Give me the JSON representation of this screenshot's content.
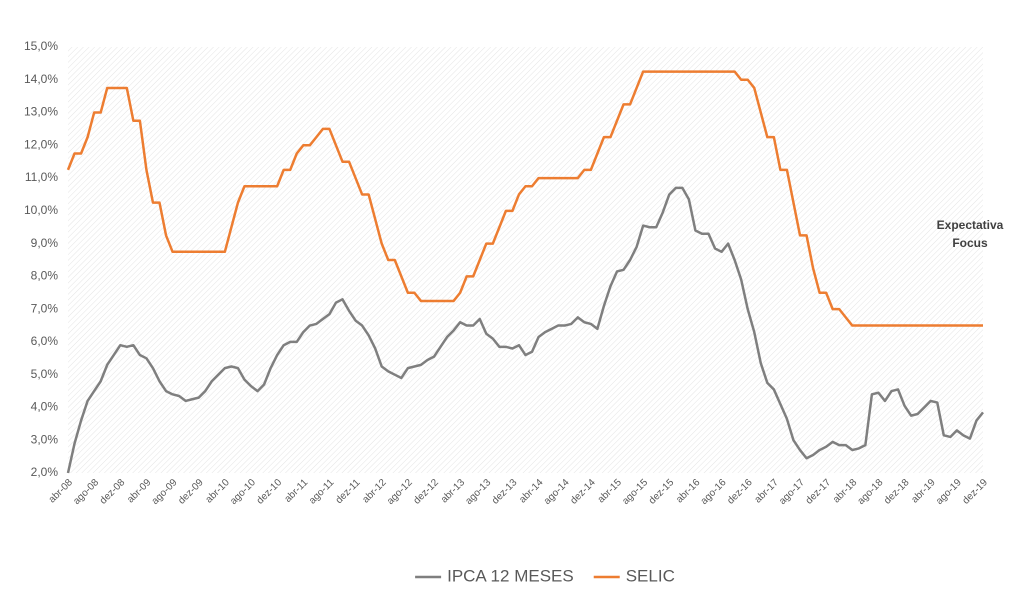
{
  "chart_data": {
    "type": "line",
    "categories": [
      "abr-08",
      null,
      null,
      null,
      "ago-08",
      null,
      null,
      null,
      "dez-08",
      null,
      null,
      null,
      "abr-09",
      null,
      null,
      null,
      "ago-09",
      null,
      null,
      null,
      "dez-09",
      null,
      null,
      null,
      "abr-10",
      null,
      null,
      null,
      "ago-10",
      null,
      null,
      null,
      "dez-10",
      null,
      null,
      null,
      "abr-11",
      null,
      null,
      null,
      "ago-11",
      null,
      null,
      null,
      "dez-11",
      null,
      null,
      null,
      "abr-12",
      null,
      null,
      null,
      "ago-12",
      null,
      null,
      null,
      "dez-12",
      null,
      null,
      null,
      "abr-13",
      null,
      null,
      null,
      "ago-13",
      null,
      null,
      null,
      "dez-13",
      null,
      null,
      null,
      "abr-14",
      null,
      null,
      null,
      "ago-14",
      null,
      null,
      null,
      "dez-14",
      null,
      null,
      null,
      "abr-15",
      null,
      null,
      null,
      "ago-15",
      null,
      null,
      null,
      "dez-15",
      null,
      null,
      null,
      "abr-16",
      null,
      null,
      null,
      "ago-16",
      null,
      null,
      null,
      "dez-16",
      null,
      null,
      null,
      "abr-17",
      null,
      null,
      null,
      "ago-17",
      null,
      null,
      null,
      "dez-17",
      null,
      null,
      null,
      "abr-18",
      null,
      null,
      null,
      "ago-18",
      null,
      null,
      null,
      "dez-18",
      null,
      null,
      null,
      "abr-19",
      null,
      null,
      null,
      "ago-19",
      null,
      null,
      null,
      "dez-19"
    ],
    "series": [
      {
        "name": "IPCA 12 MESES",
        "color": "#7f7f7f",
        "values": [
          2.0,
          2.9,
          3.6,
          4.2,
          4.5,
          4.8,
          5.3,
          5.6,
          5.9,
          5.85,
          5.9,
          5.6,
          5.5,
          5.2,
          4.8,
          4.5,
          4.4,
          4.35,
          4.2,
          4.25,
          4.3,
          4.5,
          4.8,
          5.0,
          5.2,
          5.25,
          5.2,
          4.85,
          4.65,
          4.5,
          4.7,
          5.2,
          5.6,
          5.9,
          6.0,
          6.0,
          6.3,
          6.5,
          6.55,
          6.7,
          6.85,
          7.2,
          7.3,
          6.95,
          6.65,
          6.5,
          6.2,
          5.8,
          5.25,
          5.1,
          5.0,
          4.9,
          5.2,
          5.25,
          5.3,
          5.45,
          5.55,
          5.85,
          6.15,
          6.35,
          6.6,
          6.5,
          6.5,
          6.7,
          6.25,
          6.1,
          5.85,
          5.85,
          5.8,
          5.9,
          5.6,
          5.7,
          6.15,
          6.3,
          6.4,
          6.5,
          6.5,
          6.55,
          6.75,
          6.6,
          6.55,
          6.4,
          7.1,
          7.7,
          8.15,
          8.2,
          8.5,
          8.9,
          9.55,
          9.5,
          9.5,
          9.95,
          10.5,
          10.7,
          10.7,
          10.35,
          9.4,
          9.3,
          9.3,
          8.85,
          8.75,
          9.0,
          8.5,
          7.9,
          7.0,
          6.3,
          5.35,
          4.75,
          4.55,
          4.1,
          3.65,
          3.0,
          2.7,
          2.45,
          2.55,
          2.7,
          2.8,
          2.95,
          2.85,
          2.85,
          2.7,
          2.75,
          2.85,
          4.4,
          4.45,
          4.2,
          4.5,
          4.55,
          4.05,
          3.75,
          3.8,
          4.0,
          4.2,
          4.15,
          3.15,
          3.1,
          3.3,
          3.15,
          3.05,
          3.6,
          3.85
        ]
      },
      {
        "name": "SELIC",
        "color": "#ed7d31",
        "values": [
          11.25,
          11.75,
          11.75,
          12.25,
          13.0,
          13.0,
          13.75,
          13.75,
          13.75,
          13.75,
          12.75,
          12.75,
          11.25,
          10.25,
          10.25,
          9.25,
          8.75,
          8.75,
          8.75,
          8.75,
          8.75,
          8.75,
          8.75,
          8.75,
          8.75,
          9.5,
          10.25,
          10.75,
          10.75,
          10.75,
          10.75,
          10.75,
          10.75,
          11.25,
          11.25,
          11.75,
          12.0,
          12.0,
          12.25,
          12.5,
          12.5,
          12.0,
          11.5,
          11.5,
          11.0,
          10.5,
          10.5,
          9.75,
          9.0,
          8.5,
          8.5,
          8.0,
          7.5,
          7.5,
          7.25,
          7.25,
          7.25,
          7.25,
          7.25,
          7.25,
          7.5,
          8.0,
          8.0,
          8.5,
          9.0,
          9.0,
          9.5,
          10.0,
          10.0,
          10.5,
          10.75,
          10.75,
          11.0,
          11.0,
          11.0,
          11.0,
          11.0,
          11.0,
          11.0,
          11.25,
          11.25,
          11.75,
          12.25,
          12.25,
          12.75,
          13.25,
          13.25,
          13.75,
          14.25,
          14.25,
          14.25,
          14.25,
          14.25,
          14.25,
          14.25,
          14.25,
          14.25,
          14.25,
          14.25,
          14.25,
          14.25,
          14.25,
          14.25,
          14.0,
          14.0,
          13.75,
          13.0,
          12.25,
          12.25,
          11.25,
          11.25,
          10.25,
          9.25,
          9.25,
          8.25,
          7.5,
          7.5,
          7.0,
          7.0,
          6.75,
          6.5,
          6.5,
          6.5,
          6.5,
          6.5,
          6.5,
          6.5,
          6.5,
          6.5,
          6.5,
          6.5,
          6.5,
          6.5,
          6.5,
          6.5,
          6.5,
          6.5,
          6.5,
          6.5,
          6.5,
          6.5
        ]
      }
    ],
    "ylim": [
      2,
      15
    ],
    "yticks": [
      {
        "value": 2,
        "label": "2,0%"
      },
      {
        "value": 3,
        "label": "3,0%"
      },
      {
        "value": 4,
        "label": "4,0%"
      },
      {
        "value": 5,
        "label": "5,0%"
      },
      {
        "value": 6,
        "label": "6,0%"
      },
      {
        "value": 7,
        "label": "7,0%"
      },
      {
        "value": 8,
        "label": "8,0%"
      },
      {
        "value": 9,
        "label": "9,0%"
      },
      {
        "value": 10,
        "label": "10,0%"
      },
      {
        "value": 11,
        "label": "11,0%"
      },
      {
        "value": 12,
        "label": "12,0%"
      },
      {
        "value": 13,
        "label": "13,0%"
      },
      {
        "value": 14,
        "label": "14,0%"
      },
      {
        "value": 15,
        "label": "15,0%"
      }
    ],
    "annotation": [
      "Expectativa",
      "Focus"
    ],
    "legend": "bottom"
  }
}
